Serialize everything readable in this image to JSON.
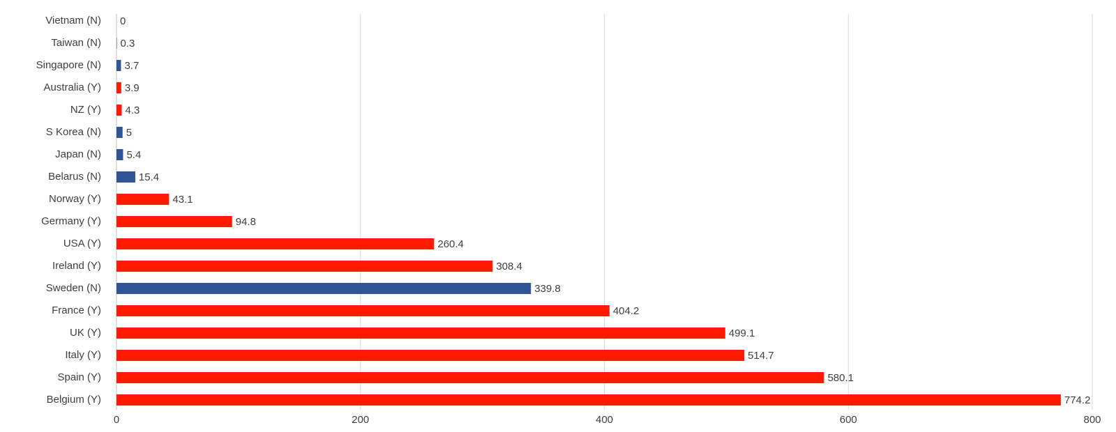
{
  "chart_data": {
    "type": "bar",
    "orientation": "horizontal",
    "categories": [
      "Vietnam (N)",
      "Taiwan (N)",
      "Singapore (N)",
      "Australia (Y)",
      "NZ (Y)",
      "S Korea (N)",
      "Japan (N)",
      "Belarus (N)",
      "Norway (Y)",
      "Germany (Y)",
      "USA (Y)",
      "Ireland (Y)",
      "Sweden (N)",
      "France (Y)",
      "UK (Y)",
      "Italy (Y)",
      "Spain (Y)",
      "Belgium (Y)"
    ],
    "values": [
      0,
      0.3,
      3.7,
      3.9,
      4.3,
      5,
      5.4,
      15.4,
      43.1,
      94.8,
      260.4,
      308.4,
      339.8,
      404.2,
      499.1,
      514.7,
      580.1,
      774.2
    ],
    "value_labels": [
      "0",
      "0.3",
      "3.7",
      "3.9",
      "4.3",
      "5",
      "5.4",
      "15.4",
      "43.1",
      "94.8",
      "260.4",
      "308.4",
      "339.8",
      "404.2",
      "499.1",
      "514.7",
      "580.1",
      "774.2"
    ],
    "bar_colors": [
      "#2f5597",
      "#2f5597",
      "#2f5597",
      "#ff1a00",
      "#ff1a00",
      "#2f5597",
      "#2f5597",
      "#2f5597",
      "#ff1a00",
      "#ff1a00",
      "#ff1a00",
      "#ff1a00",
      "#2f5597",
      "#ff1a00",
      "#ff1a00",
      "#ff1a00",
      "#ff1a00",
      "#ff1a00"
    ],
    "xlim": [
      0,
      800
    ],
    "x_ticks": [
      0,
      200,
      400,
      600,
      800
    ],
    "x_tick_labels": [
      "0",
      "200",
      "400",
      "600",
      "800"
    ],
    "grid": "vertical",
    "legend": "none",
    "title": "",
    "xlabel": "",
    "ylabel": ""
  }
}
